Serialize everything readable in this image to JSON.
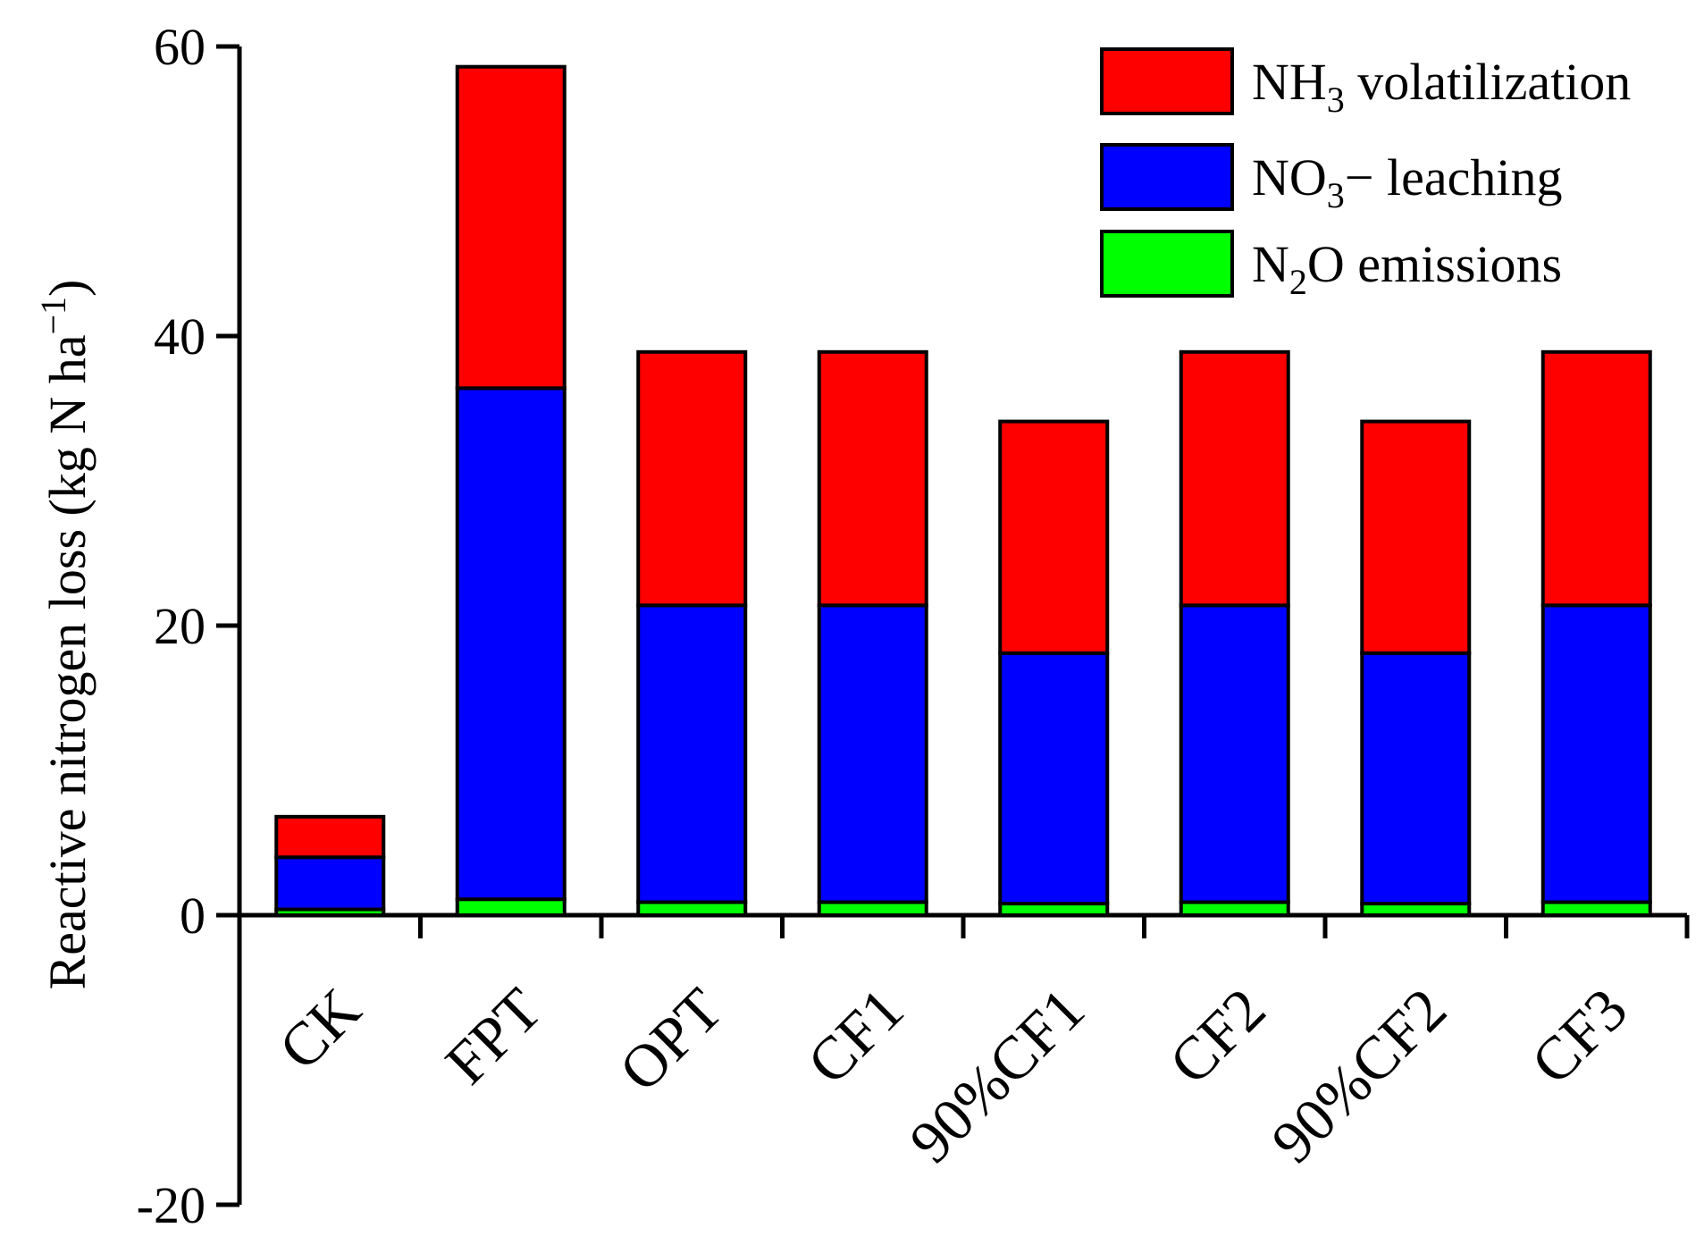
{
  "chart_data": {
    "type": "bar",
    "stacked": true,
    "title": "",
    "xlabel": "",
    "ylabel": "Reactive nitrogen loss (kg N ha−1)",
    "ylabel_parts": {
      "main": "Reactive nitrogen loss (kg N ha",
      "sup": "−1",
      "close": ")"
    },
    "ylim": [
      -20,
      60
    ],
    "yticks": [
      -20,
      0,
      20,
      40,
      60
    ],
    "categories": [
      "CK",
      "FPT",
      "OPT",
      "CF1",
      "90%CF1",
      "CF2",
      "90%CF2",
      "CF3"
    ],
    "series": [
      {
        "name": "N2O emissions",
        "label_parts": [
          "N",
          "2",
          "O emissions"
        ],
        "color": "#00ff00",
        "values": [
          0.4,
          1.1,
          0.9,
          0.9,
          0.8,
          0.9,
          0.8,
          0.9
        ]
      },
      {
        "name": "NO3− leaching",
        "label_parts": [
          "NO",
          "3",
          "− leaching"
        ],
        "color": "#0000ff",
        "values": [
          3.6,
          35.3,
          20.5,
          20.5,
          17.3,
          20.5,
          17.3,
          20.5
        ]
      },
      {
        "name": "NH3 volatilization",
        "label_parts": [
          "NH",
          "3",
          " volatilization"
        ],
        "color": "#ff0000",
        "values": [
          2.8,
          22.2,
          17.5,
          17.5,
          16.0,
          17.5,
          16.0,
          17.5
        ]
      }
    ],
    "legend_order": [
      2,
      1,
      0
    ],
    "legend_position": "top-right",
    "grid": false
  }
}
